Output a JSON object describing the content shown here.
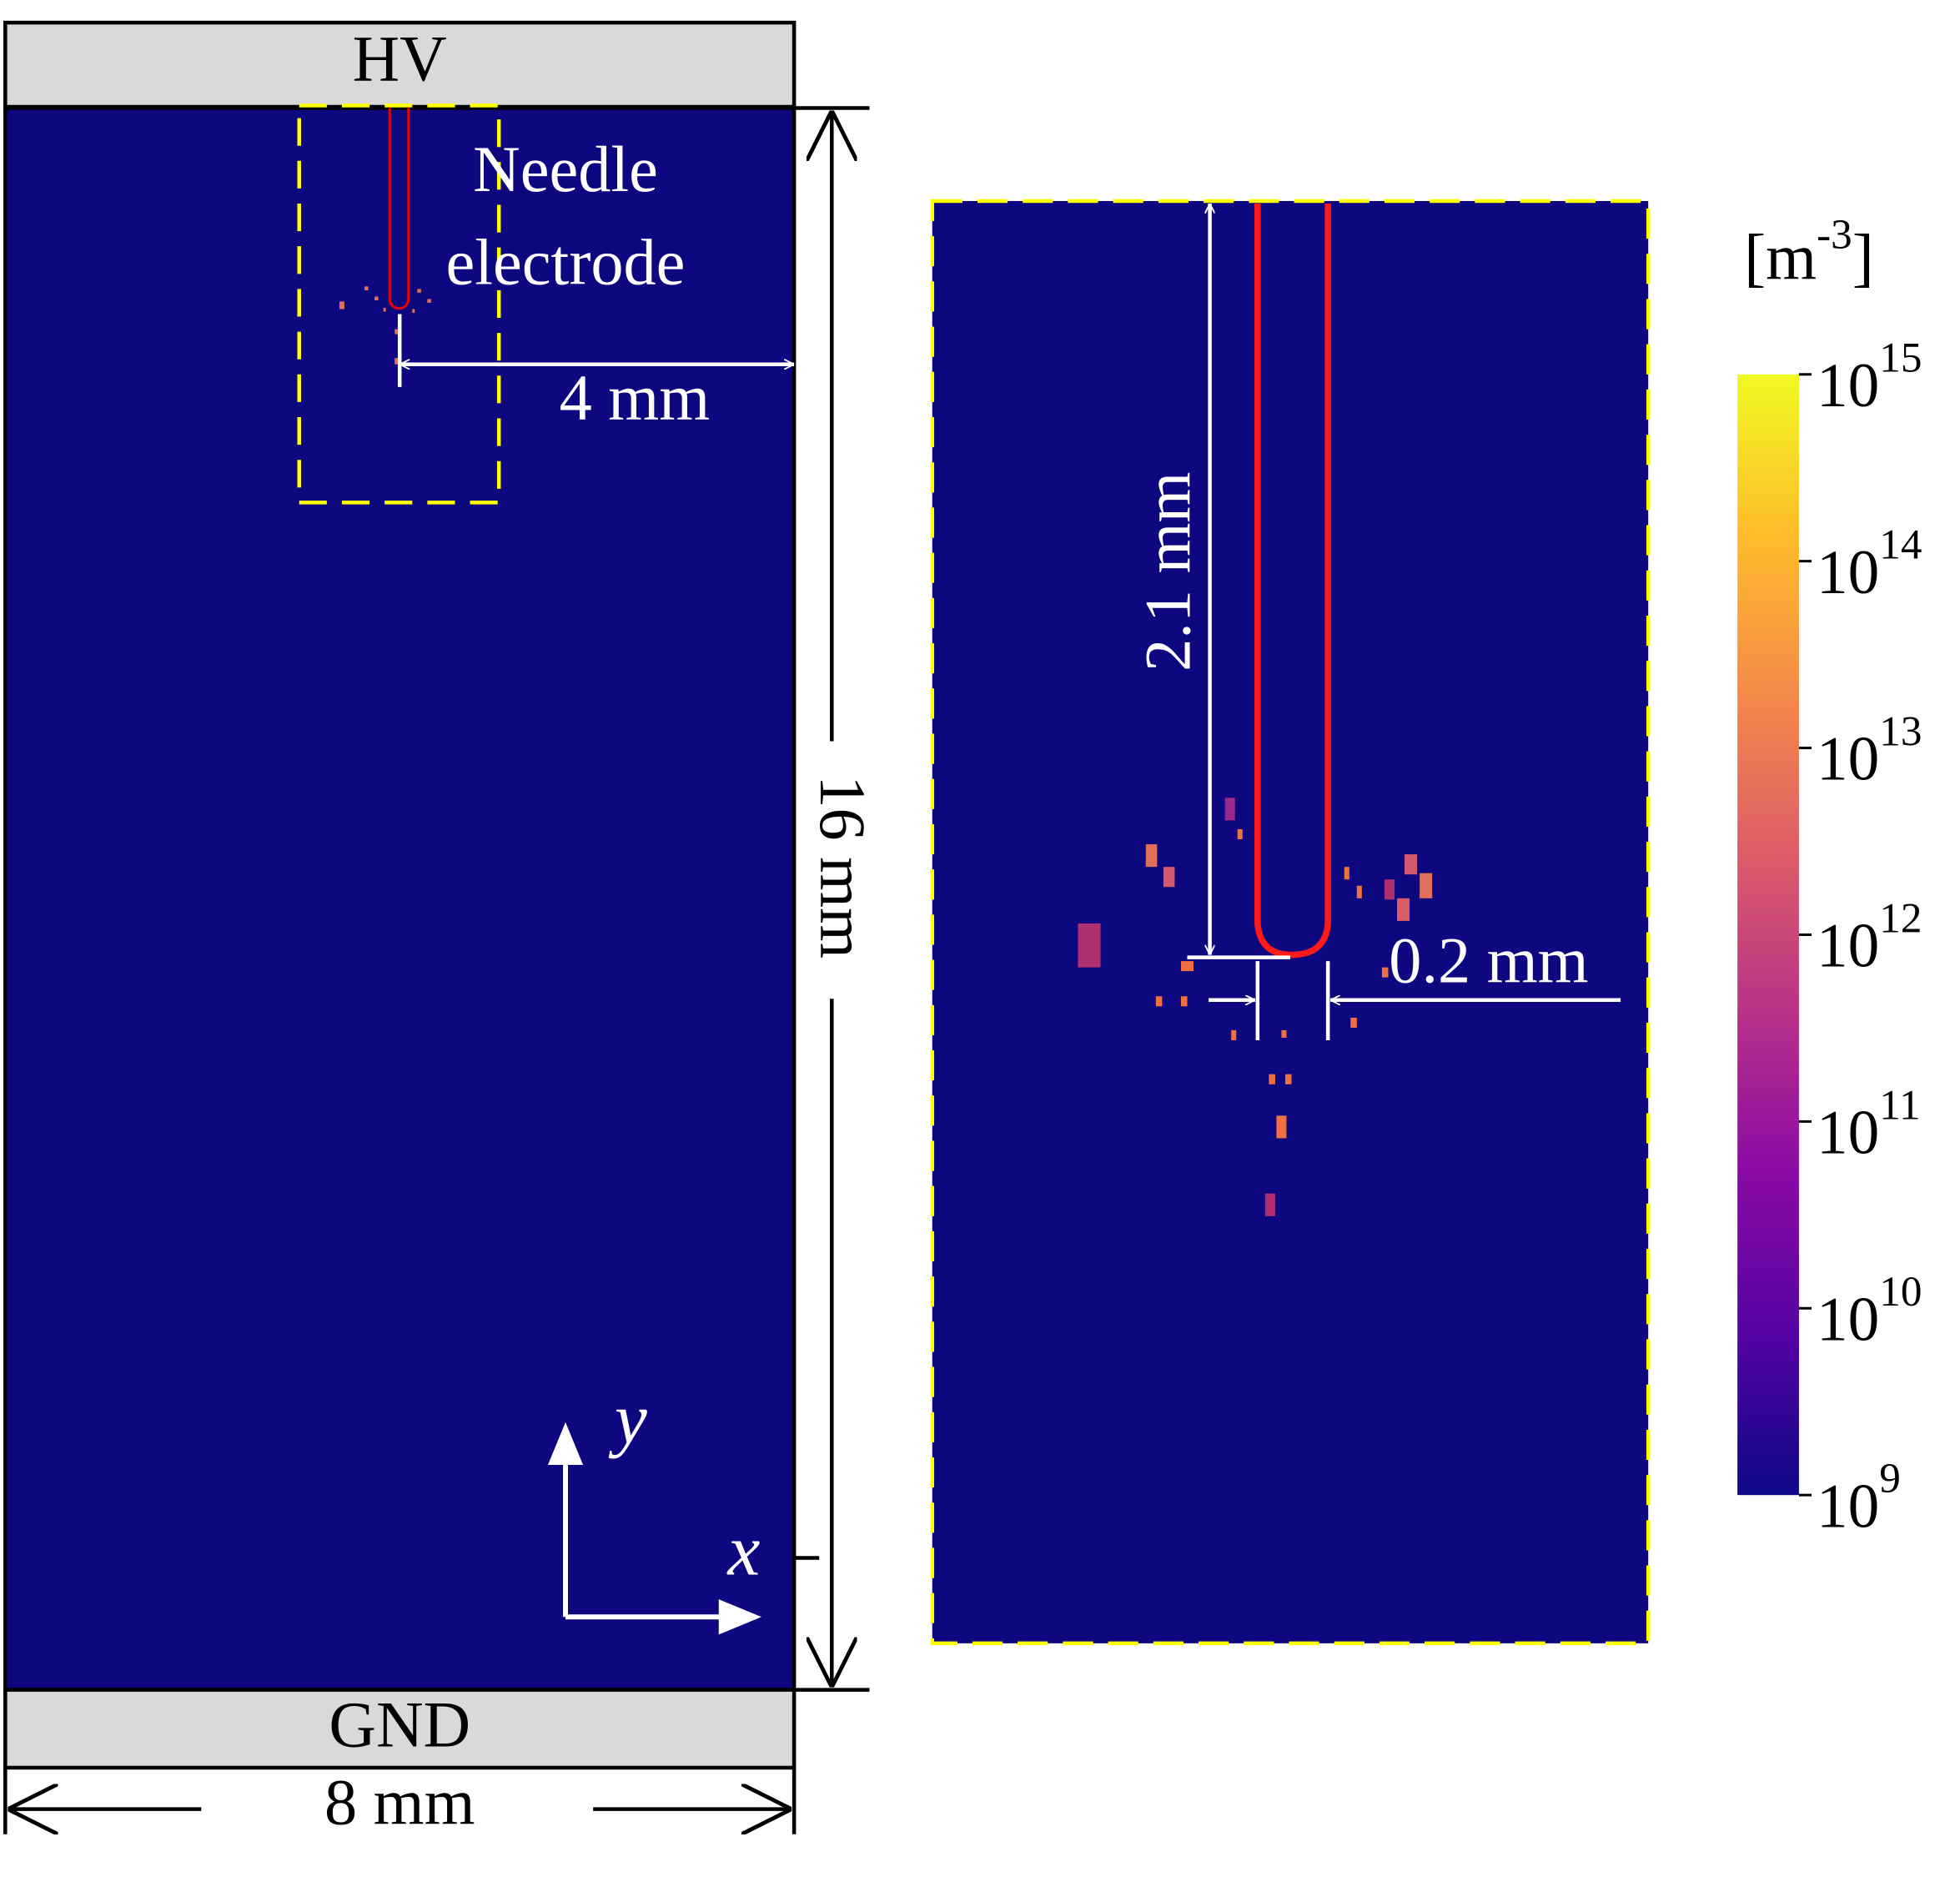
{
  "left_panel": {
    "top_electrode": "HV",
    "bottom_electrode": "GND",
    "needle_label": [
      "Needle",
      "electrode"
    ],
    "gap_dimension": "4 mm",
    "height_dimension": "16 mm",
    "width_dimension": "8 mm",
    "axis_x": "x",
    "axis_y": "y"
  },
  "right_panel": {
    "needle_length": "2.1 mm",
    "needle_width": "0.2 mm"
  },
  "colorbar": {
    "unit": {
      "base": "[m",
      "exponent": "-3",
      "close": "]"
    },
    "ticks": [
      {
        "base": "10",
        "exponent": "15"
      },
      {
        "base": "10",
        "exponent": "14"
      },
      {
        "base": "10",
        "exponent": "13"
      },
      {
        "base": "10",
        "exponent": "12"
      },
      {
        "base": "10",
        "exponent": "11"
      },
      {
        "base": "10",
        "exponent": "10"
      },
      {
        "base": "10",
        "exponent": "9"
      }
    ]
  }
}
